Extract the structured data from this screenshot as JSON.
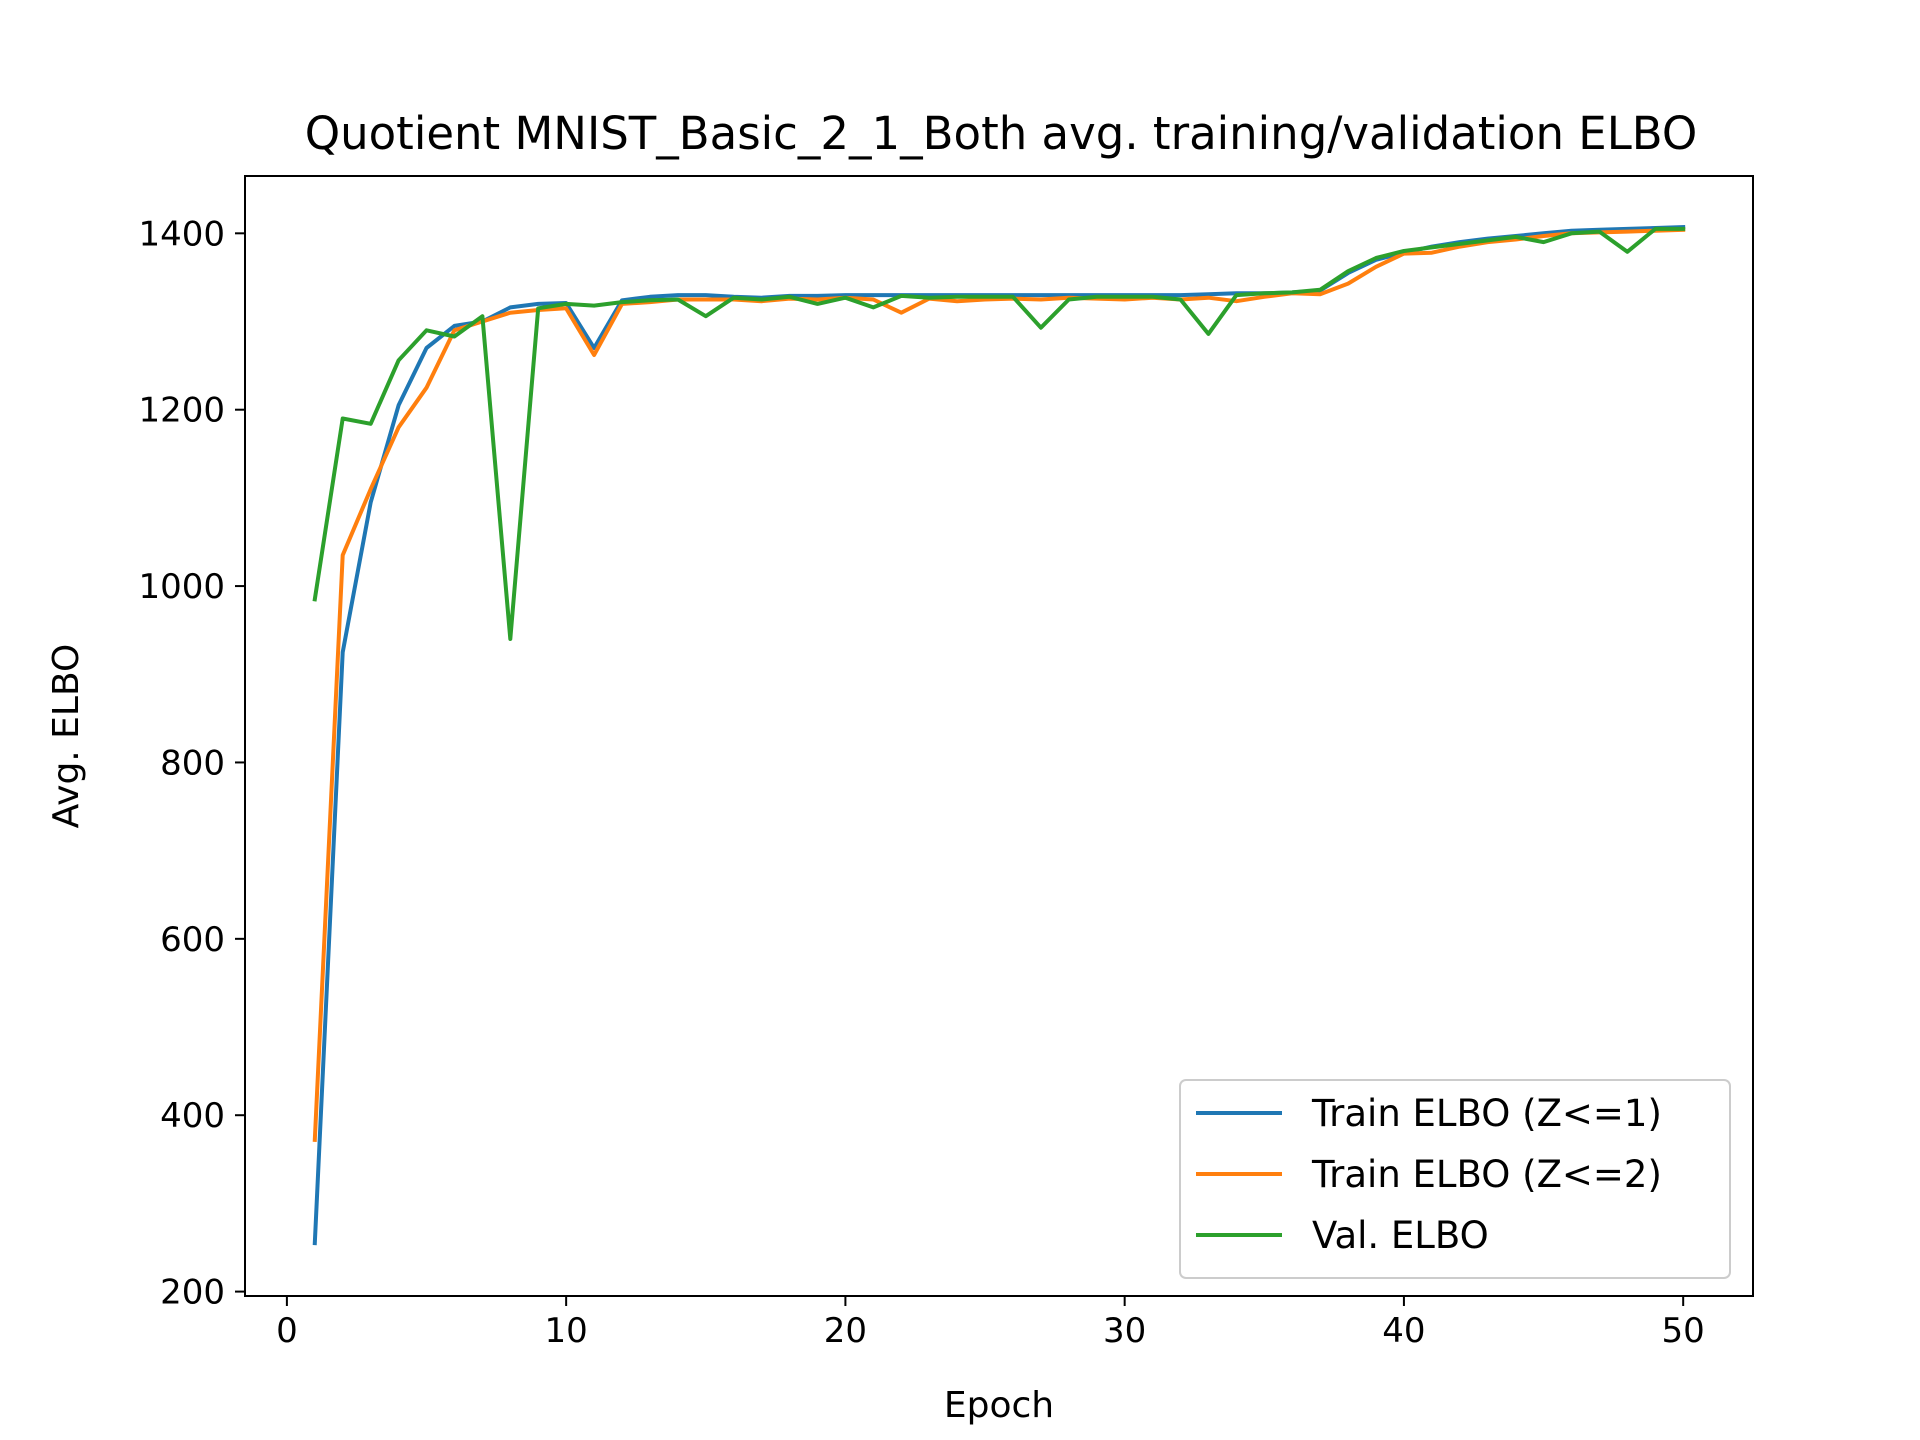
{
  "chart_data": {
    "type": "line",
    "title": "Quotient MNIST_Basic_2_1_Both avg. training/validation ELBO",
    "xlabel": "Epoch",
    "ylabel": "Avg. ELBO",
    "xlim": [
      -1.5,
      52.5
    ],
    "ylim": [
      195,
      1465
    ],
    "xticks": [
      0,
      10,
      20,
      30,
      40,
      50
    ],
    "yticks": [
      200,
      400,
      600,
      800,
      1000,
      1200,
      1400
    ],
    "grid": false,
    "legend": "lower-right",
    "x": [
      1,
      2,
      3,
      4,
      5,
      6,
      7,
      8,
      9,
      10,
      11,
      12,
      13,
      14,
      15,
      16,
      17,
      18,
      19,
      20,
      21,
      22,
      23,
      24,
      25,
      26,
      27,
      28,
      29,
      30,
      31,
      32,
      33,
      34,
      35,
      36,
      37,
      38,
      39,
      40,
      41,
      42,
      43,
      44,
      45,
      46,
      47,
      48,
      49,
      50
    ],
    "series": [
      {
        "name": "Train ELBO (Z<=1)",
        "color": "#1f77b4",
        "values": [
          255,
          925,
          1095,
          1205,
          1270,
          1295,
          1300,
          1316,
          1320,
          1321,
          1270,
          1324,
          1328,
          1330,
          1330,
          1328,
          1327,
          1329,
          1329,
          1330,
          1330,
          1330,
          1330,
          1330,
          1330,
          1330,
          1330,
          1330,
          1330,
          1330,
          1330,
          1330,
          1331,
          1332,
          1332,
          1333,
          1335,
          1355,
          1370,
          1378,
          1385,
          1390,
          1394,
          1397,
          1400,
          1403,
          1404,
          1405,
          1406,
          1407
        ]
      },
      {
        "name": "Train ELBO (Z<=2)",
        "color": "#ff7f0e",
        "values": [
          372,
          1035,
          1110,
          1180,
          1225,
          1290,
          1300,
          1310,
          1313,
          1315,
          1262,
          1320,
          1322,
          1325,
          1325,
          1325,
          1323,
          1326,
          1325,
          1327,
          1325,
          1310,
          1326,
          1323,
          1325,
          1326,
          1325,
          1327,
          1326,
          1325,
          1327,
          1325,
          1327,
          1323,
          1328,
          1332,
          1331,
          1343,
          1362,
          1377,
          1378,
          1385,
          1390,
          1393,
          1397,
          1400,
          1401,
          1402,
          1403,
          1404
        ]
      },
      {
        "name": "Val. ELBO",
        "color": "#2ca02c",
        "values": [
          985,
          1190,
          1184,
          1256,
          1290,
          1283,
          1306,
          940,
          1315,
          1320,
          1318,
          1322,
          1324,
          1325,
          1306,
          1327,
          1325,
          1328,
          1320,
          1327,
          1316,
          1329,
          1327,
          1328,
          1328,
          1328,
          1293,
          1325,
          1328,
          1328,
          1328,
          1325,
          1286,
          1330,
          1332,
          1333,
          1336,
          1357,
          1372,
          1380,
          1384,
          1388,
          1392,
          1396,
          1390,
          1400,
          1402,
          1379,
          1405,
          1405
        ]
      }
    ]
  }
}
